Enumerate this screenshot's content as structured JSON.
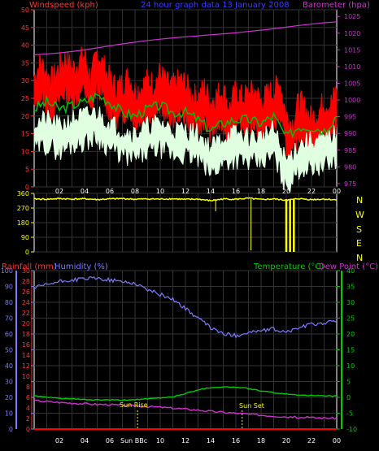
{
  "header": {
    "left_label": "Windspeed (kph)",
    "center_label": "24 hour graph data 13 January 2008",
    "right_label": "Barometer (hpa)"
  },
  "wind_panel": {
    "compass": [
      "N",
      "W",
      "S",
      "E",
      "N"
    ]
  },
  "bottom_panel": {
    "rain_label": "Rainfall (mm)",
    "humidity_label": "Humidity (%)",
    "temp_label": "Temperature (°C)",
    "dew_label": "Dew Point (°C)",
    "sun_rise_label": "Sun Rise",
    "sun_set_label": "Sun Set",
    "sun_bbc_label": "Sun BBc"
  },
  "colors": {
    "gust": "#ff0000",
    "avg_wind": "#00c000",
    "min_wind": "#e0ffe0",
    "barometer": "#d030d0",
    "direction": "#ffff00",
    "humidity": "#7b7bff",
    "temperature": "#00cc00",
    "dew_point": "#d030d0",
    "rain": "#ff0000",
    "grid": "#333333",
    "axis_left_top": "#ff3333",
    "axis_right_top": "#d030d0",
    "axis_dir": "#ffff00",
    "axis_humidity": "#7b7bff",
    "axis_temp": "#00cc00",
    "axis_rain": "#ff3333"
  },
  "chart_data": [
    {
      "type": "line",
      "name_id": "wind-barometer",
      "x_tick_labels": [
        "02",
        "04",
        "06",
        "08",
        "10",
        "12",
        "14",
        "16",
        "18",
        "20",
        "22",
        "00"
      ],
      "x_hours_start": 0,
      "x_hours_end": 24,
      "y_left_ticks": [
        0,
        5,
        10,
        15,
        20,
        25,
        30,
        35,
        40,
        45,
        50
      ],
      "ylim_left": [
        0,
        50
      ],
      "y_right_ticks": [
        975,
        980,
        985,
        990,
        995,
        1000,
        1005,
        1010,
        1015,
        1020,
        1025
      ],
      "ylim_right": [
        974,
        1027
      ],
      "series": [
        {
          "key": "gust",
          "x": [
            0,
            0.5,
            1,
            1.5,
            2,
            2.5,
            3,
            3.5,
            4,
            4.5,
            5,
            5.5,
            6,
            6.5,
            7,
            7.5,
            8,
            8.5,
            9,
            9.5,
            10,
            10.5,
            11,
            11.5,
            12,
            12.5,
            13,
            13.5,
            14,
            14.5,
            15,
            15.5,
            16,
            16.5,
            17,
            17.5,
            18,
            18.5,
            19,
            19.5,
            20,
            20.5,
            21,
            21.5,
            22,
            22.5,
            23,
            23.5,
            24
          ],
          "values": [
            31,
            35,
            32,
            30,
            34,
            36,
            33,
            35,
            37,
            30,
            38,
            34,
            30,
            28,
            29,
            31,
            27,
            28,
            30,
            29,
            32,
            29,
            28,
            30,
            29,
            26,
            25,
            28,
            24,
            26,
            27,
            22,
            27,
            25,
            26,
            27,
            24,
            26,
            27,
            29,
            20,
            18,
            24,
            22,
            19,
            21,
            24,
            23,
            27
          ]
        },
        {
          "key": "avg_wind",
          "x": [
            0,
            1,
            2,
            3,
            4,
            5,
            6,
            7,
            8,
            9,
            10,
            11,
            12,
            13,
            14,
            15,
            16,
            17,
            18,
            19,
            20,
            21,
            22,
            23,
            24
          ],
          "values": [
            22,
            24,
            22,
            23,
            24,
            26,
            24,
            21,
            20,
            22,
            23,
            21,
            21,
            19,
            16,
            18,
            19,
            19,
            18,
            20,
            14,
            17,
            17,
            16,
            20
          ]
        },
        {
          "key": "min_wind",
          "x": [
            0,
            1,
            2,
            3,
            4,
            5,
            6,
            7,
            8,
            9,
            10,
            11,
            12,
            13,
            14,
            15,
            16,
            17,
            18,
            19,
            20,
            21,
            22,
            23,
            24
          ],
          "values": [
            14,
            15,
            13,
            15,
            16,
            17,
            14,
            12,
            11,
            13,
            14,
            12,
            12,
            11,
            7,
            10,
            11,
            10,
            10,
            12,
            3,
            8,
            9,
            9,
            11
          ]
        },
        {
          "key": "barometer",
          "x": [
            0,
            1,
            2,
            3,
            4,
            5,
            6,
            7,
            8,
            9,
            10,
            11,
            12,
            13,
            14,
            15,
            16,
            17,
            18,
            19,
            20,
            21,
            22,
            23,
            24
          ],
          "values": [
            1013.5,
            1013.8,
            1014.1,
            1014.5,
            1015,
            1015.6,
            1016.2,
            1016.8,
            1017.3,
            1017.8,
            1018.2,
            1018.6,
            1018.9,
            1019.2,
            1019.5,
            1019.8,
            1020.1,
            1020.5,
            1020.9,
            1021.3,
            1021.8,
            1022.3,
            1022.7,
            1023.1,
            1023.4
          ]
        }
      ]
    },
    {
      "type": "scatter",
      "name_id": "wind-direction",
      "y_ticks": [
        0,
        90,
        180,
        270,
        360
      ],
      "ylim": [
        0,
        360
      ],
      "series": [
        {
          "key": "direction",
          "x": [
            0,
            1,
            2,
            3,
            4,
            5,
            6,
            7,
            8,
            9,
            10,
            11,
            12,
            13,
            14,
            15,
            16,
            17,
            18,
            19,
            20,
            21,
            22,
            23,
            24
          ],
          "values": [
            326,
            324,
            328,
            325,
            327,
            322,
            326,
            328,
            324,
            326,
            325,
            327,
            323,
            325,
            315,
            326,
            324,
            330,
            322,
            326,
            318,
            328,
            322,
            325,
            320
          ]
        }
      ]
    },
    {
      "type": "line",
      "name_id": "humidity-temperature",
      "y_left_ticks": [
        0,
        10,
        20,
        30,
        40,
        50,
        60,
        70,
        80,
        90,
        100
      ],
      "ylim_left": [
        0,
        100
      ],
      "y_rain_ticks": [
        0,
        2,
        4,
        6,
        8,
        10,
        12,
        14,
        16,
        18,
        20,
        22,
        24,
        26,
        28,
        30
      ],
      "ylim_rain": [
        0,
        30
      ],
      "y_right_ticks": [
        -10,
        -5,
        0,
        5,
        10,
        15,
        20,
        25,
        30,
        35,
        40
      ],
      "ylim_right": [
        -10,
        40
      ],
      "series": [
        {
          "key": "humidity",
          "x": [
            0,
            1,
            2,
            3,
            4,
            5,
            6,
            7,
            8,
            9,
            10,
            11,
            12,
            13,
            14,
            15,
            16,
            17,
            18,
            19,
            20,
            21,
            22,
            23,
            24
          ],
          "values": [
            89,
            91,
            93,
            94,
            95,
            95,
            94,
            93,
            92,
            88,
            85,
            82,
            76,
            70,
            64,
            60,
            59,
            61,
            62,
            63,
            61,
            64,
            66,
            67,
            68
          ]
        },
        {
          "key": "temperature",
          "x": [
            0,
            1,
            2,
            3,
            4,
            5,
            6,
            7,
            8,
            9,
            10,
            11,
            12,
            13,
            14,
            15,
            16,
            17,
            18,
            19,
            20,
            21,
            22,
            23,
            24
          ],
          "values": [
            0.5,
            0,
            -0.3,
            -0.5,
            -0.7,
            -0.8,
            -0.8,
            -0.9,
            -0.7,
            -0.5,
            -0.2,
            0.2,
            1.2,
            2.4,
            3.1,
            3.3,
            3.2,
            2.8,
            2.0,
            1.5,
            1.0,
            0.8,
            0.6,
            0.4,
            0.4
          ]
        },
        {
          "key": "dew_point",
          "x": [
            0,
            1,
            2,
            3,
            4,
            5,
            6,
            7,
            8,
            9,
            10,
            11,
            12,
            13,
            14,
            15,
            16,
            17,
            18,
            19,
            20,
            21,
            22,
            23,
            24
          ],
          "values": [
            -1,
            -1.3,
            -1.6,
            -1.8,
            -2.0,
            -2.2,
            -2.3,
            -2.5,
            -2.7,
            -2.9,
            -3.1,
            -3.4,
            -3.7,
            -4.0,
            -4.4,
            -4.7,
            -5.0,
            -5.3,
            -5.6,
            -5.9,
            -6.1,
            -6.3,
            -6.4,
            -6.5,
            -6.6
          ]
        },
        {
          "key": "rain",
          "x": [
            0,
            24
          ],
          "values": [
            0,
            0
          ]
        }
      ],
      "markers": [
        {
          "key": "sun_rise",
          "hour": 8.2
        },
        {
          "key": "sun_set",
          "hour": 16.5
        }
      ]
    }
  ]
}
